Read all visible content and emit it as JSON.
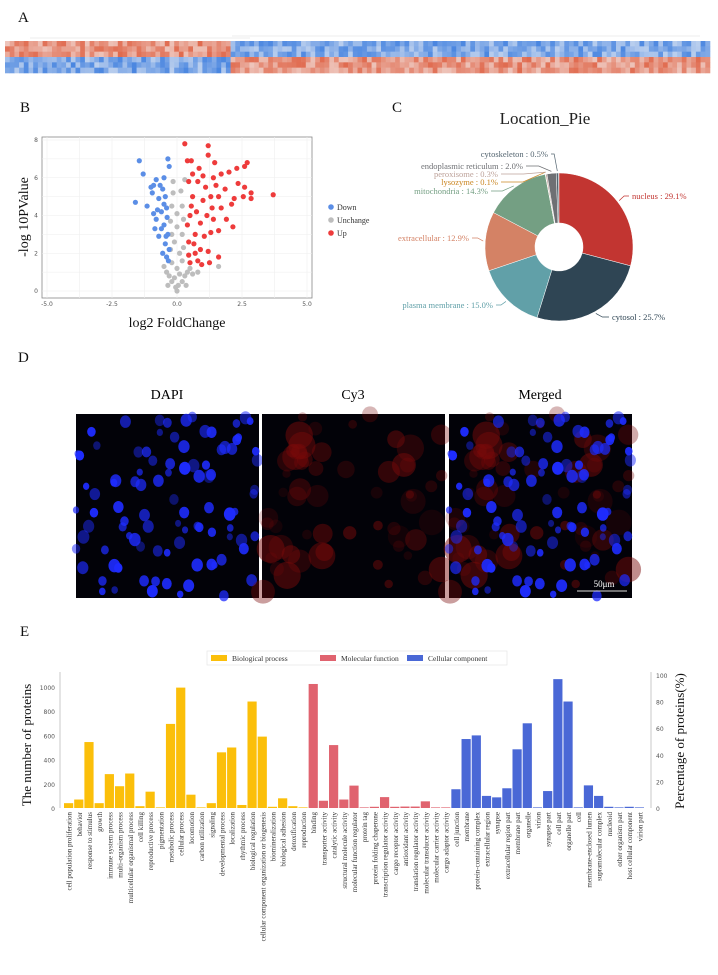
{
  "panels": {
    "a": "A",
    "b": "B",
    "c": "C",
    "d": "D",
    "e": "E"
  },
  "chart_data": [
    {
      "panel": "A",
      "type": "heatmap",
      "colors": {
        "low": "#4a86e0",
        "mid": "#f5f5f5",
        "high": "#e06a4e"
      }
    },
    {
      "panel": "B",
      "type": "scatter",
      "xlabel": "log2 FoldChange",
      "ylabel": "-log 10PValue",
      "xlim": [
        -5,
        5
      ],
      "ylim": [
        0,
        8
      ],
      "xticks": [
        "-5.0",
        "-2.5",
        "0.0",
        "2.5",
        "5.0"
      ],
      "yticks": [
        "0",
        "2",
        "4",
        "6",
        "8"
      ],
      "grid": true,
      "legend_position": "right",
      "series": [
        {
          "name": "Down",
          "color": "#5b8ee6",
          "points": [
            [
              -1.45,
              6.9
            ],
            [
              -1.3,
              6.2
            ],
            [
              -1.6,
              4.7
            ],
            [
              -1.15,
              4.5
            ],
            [
              -0.9,
              5.6
            ],
            [
              -0.8,
              5.9
            ],
            [
              -0.95,
              5.2
            ],
            [
              -0.7,
              4.9
            ],
            [
              -0.6,
              4.2
            ],
            [
              -0.8,
              3.8
            ],
            [
              -0.7,
              2.9
            ],
            [
              -0.5,
              3.5
            ],
            [
              -0.45,
              2.5
            ],
            [
              -0.4,
              1.8
            ],
            [
              -0.35,
              7.0
            ],
            [
              -0.3,
              6.6
            ],
            [
              -0.5,
              6.0
            ],
            [
              -0.55,
              5.4
            ],
            [
              -0.4,
              4.4
            ],
            [
              -0.35,
              3.0
            ],
            [
              -0.6,
              3.3
            ],
            [
              -0.3,
              2.2
            ],
            [
              -0.45,
              5.0
            ],
            [
              -0.5,
              4.6
            ],
            [
              -0.38,
              3.9
            ],
            [
              -0.42,
              2.9
            ],
            [
              -0.33,
              1.6
            ],
            [
              -0.65,
              5.6
            ],
            [
              -0.75,
              4.3
            ],
            [
              -0.55,
              2.0
            ],
            [
              -0.85,
              3.3
            ],
            [
              -0.9,
              4.1
            ],
            [
              -1.0,
              5.5
            ]
          ]
        },
        {
          "name": "Unchange",
          "color": "#bdbdbd",
          "points": [
            [
              0,
              0
            ],
            [
              -0.05,
              0.2
            ],
            [
              0.05,
              0.3
            ],
            [
              -0.2,
              0.5
            ],
            [
              0.2,
              0.5
            ],
            [
              -0.3,
              0.8
            ],
            [
              0.3,
              0.8
            ],
            [
              -0.5,
              1.3
            ],
            [
              0.5,
              1.2
            ],
            [
              0.8,
              1.0
            ],
            [
              0.6,
              0.9
            ],
            [
              -0.4,
              1.0
            ],
            [
              1.6,
              1.3
            ],
            [
              -0.2,
              1.5
            ],
            [
              0.2,
              1.6
            ],
            [
              -0.25,
              2.2
            ],
            [
              0.25,
              2.3
            ],
            [
              -0.2,
              3.0
            ],
            [
              0.2,
              3.0
            ],
            [
              -0.25,
              3.7
            ],
            [
              0.25,
              3.8
            ],
            [
              -0.2,
              4.5
            ],
            [
              0.2,
              4.5
            ],
            [
              -0.15,
              5.2
            ],
            [
              0.15,
              5.3
            ],
            [
              -0.15,
              5.8
            ],
            [
              0.3,
              5.9
            ],
            [
              -0.1,
              2.6
            ],
            [
              0.1,
              2.0
            ],
            [
              0,
              3.4
            ],
            [
              0,
              4.1
            ],
            [
              0,
              1.2
            ],
            [
              0.35,
              0.3
            ],
            [
              -0.35,
              0.3
            ],
            [
              0.4,
              1.0
            ],
            [
              -0.1,
              0.7
            ],
            [
              0.1,
              0.9
            ]
          ]
        },
        {
          "name": "Up",
          "color": "#ee3b3b",
          "points": [
            [
              0.3,
              7.8
            ],
            [
              1.2,
              7.7
            ],
            [
              1.2,
              7.2
            ],
            [
              0.4,
              6.9
            ],
            [
              0.55,
              6.9
            ],
            [
              1.45,
              6.8
            ],
            [
              2.7,
              6.8
            ],
            [
              2.6,
              6.6
            ],
            [
              2.3,
              6.5
            ],
            [
              2.0,
              6.3
            ],
            [
              1.7,
              6.2
            ],
            [
              3.7,
              5.1
            ],
            [
              2.85,
              5.2
            ],
            [
              2.85,
              4.9
            ],
            [
              2.55,
              5.0
            ],
            [
              2.2,
              4.9
            ],
            [
              2.1,
              4.6
            ],
            [
              2.6,
              5.5
            ],
            [
              2.35,
              5.7
            ],
            [
              1.85,
              5.4
            ],
            [
              1.7,
              4.4
            ],
            [
              1.9,
              3.8
            ],
            [
              2.15,
              3.4
            ],
            [
              1.6,
              3.2
            ],
            [
              1.4,
              3.8
            ],
            [
              1.35,
              4.4
            ],
            [
              1.3,
              3.1
            ],
            [
              1.2,
              2.1
            ],
            [
              1.6,
              1.8
            ],
            [
              1.25,
              1.5
            ],
            [
              0.9,
              2.2
            ],
            [
              0.7,
              2.0
            ],
            [
              0.5,
              1.5
            ],
            [
              0.8,
              5.8
            ],
            [
              1.0,
              6.1
            ],
            [
              0.6,
              5.0
            ],
            [
              0.5,
              4.0
            ],
            [
              0.7,
              3.0
            ],
            [
              1.0,
              4.8
            ],
            [
              0.4,
              3.5
            ],
            [
              0.45,
              2.6
            ],
            [
              1.1,
              5.5
            ],
            [
              0.45,
              5.8
            ],
            [
              0.6,
              6.2
            ],
            [
              0.85,
              6.5
            ],
            [
              0.55,
              4.5
            ],
            [
              0.75,
              4.2
            ],
            [
              0.9,
              3.6
            ],
            [
              0.45,
              1.9
            ],
            [
              0.65,
              2.5
            ],
            [
              1.05,
              2.9
            ],
            [
              1.15,
              4.0
            ],
            [
              1.3,
              5.0
            ],
            [
              1.5,
              5.6
            ],
            [
              0.8,
              1.6
            ],
            [
              0.95,
              1.4
            ],
            [
              1.4,
              6.0
            ],
            [
              1.6,
              5.0
            ]
          ]
        }
      ]
    },
    {
      "panel": "C",
      "type": "pie",
      "title": "Location_Pie",
      "donut": true,
      "slices": [
        {
          "label": "nucleus",
          "value": 29.1,
          "color": "#c23531"
        },
        {
          "label": "cytosol",
          "value": 25.7,
          "color": "#2f4554"
        },
        {
          "label": "plasma membrane",
          "value": 15.0,
          "color": "#61a0a8"
        },
        {
          "label": "extracellular",
          "value": 12.9,
          "color": "#d48265"
        },
        {
          "label": "mitochondria",
          "value": 14.3,
          "color": "#749f83"
        },
        {
          "label": "lysozyme",
          "value": 0.1,
          "color": "#ca8622"
        },
        {
          "label": "peroxisome",
          "value": 0.3,
          "color": "#bda29a"
        },
        {
          "label": "endoplasmic reticulum",
          "value": 2.0,
          "color": "#6e7074"
        },
        {
          "label": "cytoskeleton",
          "value": 0.5,
          "color": "#546570"
        }
      ]
    },
    {
      "panel": "E",
      "type": "bar",
      "ylabel": "The number of proteins",
      "ylabel_right": "Percentage of proteins(%)",
      "ylim": [
        0,
        1100
      ],
      "ylim_right": [
        0,
        100
      ],
      "yticks": [
        "0",
        "200",
        "400",
        "600",
        "800",
        "1000"
      ],
      "yticks_right": [
        "0",
        "20",
        "40",
        "60",
        "80",
        "100"
      ],
      "legend_position": "top",
      "series": [
        {
          "name": "Biological process",
          "color": "#fbbf0a",
          "categories": [
            "cell population proliferation",
            "behavior",
            "response to stimulus",
            "growth",
            "immune system process",
            "multi-organism process",
            "multicellular organismal process",
            "cell killing",
            "reproductive process",
            "pigmentation",
            "metabolic process",
            "cellular process",
            "locomotion",
            "carbon utilization",
            "signaling",
            "developmental process",
            "localization",
            "rhythmic process",
            "biological regulation",
            "cellular component organization or biogenesis",
            "biomineralization",
            "biological adhesion",
            "detoxification",
            "reproduction"
          ],
          "values": [
            40,
            70,
            545,
            40,
            280,
            180,
            285,
            15,
            135,
            5,
            695,
            995,
            110,
            5,
            40,
            460,
            500,
            25,
            880,
            590,
            10,
            80,
            15,
            5
          ]
        },
        {
          "name": "Molecular function",
          "color": "#e0636f",
          "categories": [
            "binding",
            "transporter activity",
            "catalytic activity",
            "structural molecule activity",
            "molecular function regulator",
            "protein tag",
            "protein folding chaperone",
            "transcription regulator activity",
            "cargo receptor activity",
            "antioxidant activity",
            "translation regulator activity",
            "molecular transducer activity",
            "molecular carrier activity",
            "cargo adaptor activity"
          ],
          "values": [
            1025,
            60,
            520,
            70,
            185,
            5,
            10,
            90,
            10,
            12,
            12,
            55,
            5,
            5
          ]
        },
        {
          "name": "Cellular component",
          "color": "#4a68d6",
          "categories": [
            "cell junction",
            "membrane",
            "protein-containing complex",
            "extracellular region",
            "synapse",
            "extracellular region part",
            "membrane part",
            "organelle",
            "virion",
            "synapse part",
            "cell part",
            "organelle part",
            "cell",
            "membrane-enclosed lumen",
            "supramolecular complex",
            "nucleoid",
            "other organism part",
            "host cellular component",
            "virion part"
          ],
          "values": [
            155,
            570,
            600,
            100,
            88,
            163,
            485,
            700,
            5,
            140,
            1065,
            880,
            5,
            187,
            100,
            10,
            5,
            10,
            5
          ]
        }
      ]
    }
  ],
  "microscopy": {
    "channels": [
      "DAPI",
      "Cy3",
      "Merged"
    ],
    "scale_bar": "50μm"
  }
}
